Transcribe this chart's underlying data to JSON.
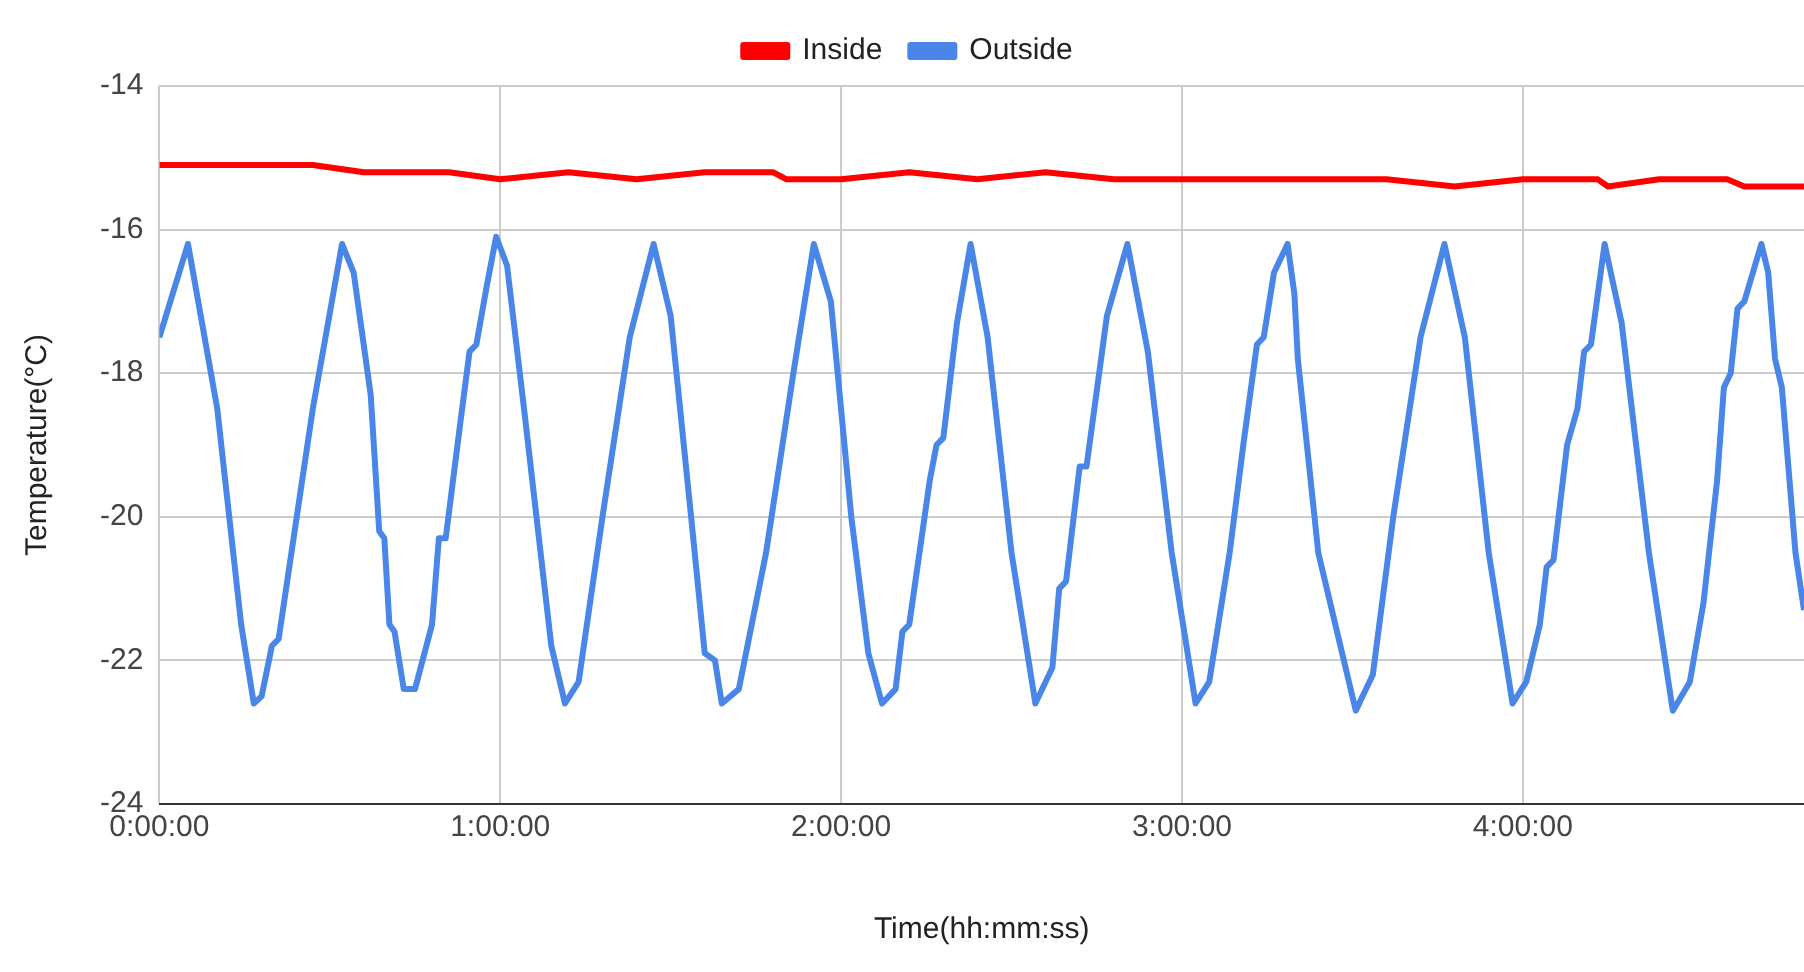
{
  "chart_data": {
    "type": "line",
    "xlabel": "Time(hh:mm:ss)",
    "ylabel": "Temperature(°C)",
    "xlim": [
      0,
      4.825
    ],
    "xticks": [
      {
        "value": 0,
        "label": "0:00:00"
      },
      {
        "value": 1,
        "label": "1:00:00"
      },
      {
        "value": 2,
        "label": "2:00:00"
      },
      {
        "value": 3,
        "label": "3:00:00"
      },
      {
        "value": 4,
        "label": "4:00:00"
      }
    ],
    "ylim": [
      -24,
      -14
    ],
    "yticks": [
      -24,
      -22,
      -20,
      -18,
      -16,
      -14
    ],
    "grid": true,
    "legend": "top",
    "marker": "none",
    "line_style": "solid",
    "series": [
      {
        "name": "Inside",
        "color": "#ff0000",
        "x": [
          0,
          0.45,
          0.6,
          0.85,
          1.0,
          1.2,
          1.4,
          1.6,
          1.8,
          1.84,
          2.0,
          2.2,
          2.4,
          2.6,
          2.8,
          3.6,
          3.8,
          4.0,
          4.22,
          4.25,
          4.4,
          4.6,
          4.65,
          4.825
        ],
        "values": [
          -15.1,
          -15.1,
          -15.2,
          -15.2,
          -15.3,
          -15.2,
          -15.3,
          -15.2,
          -15.2,
          -15.3,
          -15.3,
          -15.2,
          -15.3,
          -15.2,
          -15.3,
          -15.3,
          -15.4,
          -15.3,
          -15.3,
          -15.4,
          -15.3,
          -15.3,
          -15.4,
          -15.4
        ]
      },
      {
        "name": "Outside",
        "color": "#4a86e8",
        "x": [
          0,
          0.084,
          0.17,
          0.24,
          0.277,
          0.3,
          0.33,
          0.35,
          0.45,
          0.536,
          0.57,
          0.62,
          0.645,
          0.66,
          0.675,
          0.69,
          0.717,
          0.75,
          0.8,
          0.82,
          0.84,
          0.88,
          0.91,
          0.93,
          0.96,
          0.988,
          1.02,
          1.07,
          1.15,
          1.19,
          1.23,
          1.3,
          1.38,
          1.45,
          1.5,
          1.56,
          1.6,
          1.63,
          1.65,
          1.7,
          1.78,
          1.86,
          1.92,
          1.97,
          2.03,
          2.08,
          2.12,
          2.16,
          2.18,
          2.2,
          2.26,
          2.28,
          2.3,
          2.34,
          2.38,
          2.43,
          2.5,
          2.57,
          2.62,
          2.64,
          2.66,
          2.7,
          2.72,
          2.78,
          2.84,
          2.9,
          2.97,
          3.04,
          3.08,
          3.14,
          3.18,
          3.22,
          3.24,
          3.27,
          3.31,
          3.33,
          3.34,
          3.4,
          3.51,
          3.56,
          3.62,
          3.7,
          3.77,
          3.83,
          3.9,
          3.97,
          4.01,
          4.05,
          4.07,
          4.09,
          4.13,
          4.16,
          4.18,
          4.2,
          4.24,
          4.29,
          4.37,
          4.44,
          4.49,
          4.53,
          4.57,
          4.59,
          4.61,
          4.63,
          4.65,
          4.7,
          4.72,
          4.74,
          4.76,
          4.8,
          4.825
        ],
        "values": [
          -17.5,
          -16.2,
          -18.5,
          -21.5,
          -22.6,
          -22.5,
          -21.8,
          -21.7,
          -18.5,
          -16.2,
          -16.6,
          -18.3,
          -20.2,
          -20.3,
          -21.5,
          -21.6,
          -22.4,
          -22.4,
          -21.5,
          -20.3,
          -20.3,
          -18.8,
          -17.7,
          -17.6,
          -16.8,
          -16.1,
          -16.5,
          -18.5,
          -21.8,
          -22.6,
          -22.3,
          -20,
          -17.5,
          -16.2,
          -17.2,
          -20,
          -21.9,
          -22,
          -22.6,
          -22.4,
          -20.5,
          -18,
          -16.2,
          -17,
          -20,
          -21.9,
          -22.6,
          -22.4,
          -21.6,
          -21.5,
          -19.5,
          -19,
          -18.9,
          -17.3,
          -16.2,
          -17.5,
          -20.5,
          -22.6,
          -22.1,
          -21,
          -20.9,
          -19.3,
          -19.3,
          -17.2,
          -16.2,
          -17.7,
          -20.5,
          -22.6,
          -22.3,
          -20.5,
          -19,
          -17.6,
          -17.5,
          -16.6,
          -16.2,
          -16.9,
          -17.8,
          -20.5,
          -22.7,
          -22.2,
          -20,
          -17.5,
          -16.2,
          -17.5,
          -20.5,
          -22.6,
          -22.3,
          -21.5,
          -20.7,
          -20.6,
          -19,
          -18.5,
          -17.7,
          -17.6,
          -16.2,
          -17.3,
          -20.5,
          -22.7,
          -22.3,
          -21.2,
          -19.5,
          -18.2,
          -18,
          -17.1,
          -17,
          -16.2,
          -16.6,
          -17.8,
          -18.2,
          -20.5,
          -21.3
        ]
      }
    ]
  }
}
